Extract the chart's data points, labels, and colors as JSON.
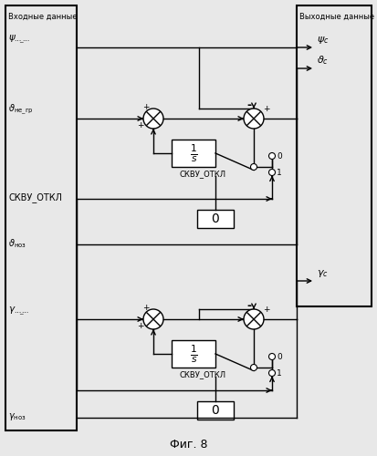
{
  "fig_bg": "#e8e8e8",
  "title": "Фиг. 8",
  "left_box_label": "Входные данные",
  "right_box_label": "Выходные данные",
  "lw": 1.0
}
